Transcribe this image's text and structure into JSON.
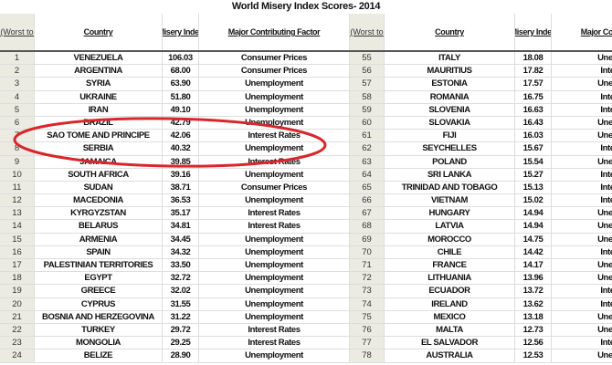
{
  "title": "World Misery Index Scores- 2014",
  "headers": {
    "rank": "Rank (Worst to Best)",
    "country": "Country",
    "index": "Misery Index",
    "factor": "Major Contributing Factor"
  },
  "highlight_color": "#d8262b",
  "left_rows": [
    [
      "1",
      "VENEZUELA",
      "106.03",
      "Consumer Prices"
    ],
    [
      "2",
      "ARGENTINA",
      "68.00",
      "Consumer Prices"
    ],
    [
      "3",
      "SYRIA",
      "63.90",
      "Unemployment"
    ],
    [
      "4",
      "UKRAINE",
      "51.80",
      "Unemployment"
    ],
    [
      "5",
      "IRAN",
      "49.10",
      "Unemployment"
    ],
    [
      "6",
      "BRAZIL",
      "42.79",
      "Unemployment"
    ],
    [
      "7",
      "SAO TOME AND PRINCIPE",
      "42.06",
      "Interest Rates"
    ],
    [
      "8",
      "SERBIA",
      "40.32",
      "Unemployment"
    ],
    [
      "9",
      "JAMAICA",
      "39.85",
      "Interest Rates"
    ],
    [
      "10",
      "SOUTH AFRICA",
      "39.16",
      "Unemployment"
    ],
    [
      "11",
      "SUDAN",
      "38.71",
      "Consumer Prices"
    ],
    [
      "12",
      "MACEDONIA",
      "36.53",
      "Unemployment"
    ],
    [
      "13",
      "KYRGYZSTAN",
      "35.17",
      "Interest Rates"
    ],
    [
      "14",
      "BELARUS",
      "34.81",
      "Interest Rates"
    ],
    [
      "15",
      "ARMENIA",
      "34.45",
      "Unemployment"
    ],
    [
      "16",
      "SPAIN",
      "34.32",
      "Unemployment"
    ],
    [
      "17",
      "PALESTINIAN TERRITORIES",
      "33.50",
      "Unemployment"
    ],
    [
      "18",
      "EGYPT",
      "32.72",
      "Unemployment"
    ],
    [
      "19",
      "GREECE",
      "32.02",
      "Unemployment"
    ],
    [
      "20",
      "CYPRUS",
      "31.55",
      "Unemployment"
    ],
    [
      "21",
      "BOSNIA AND HERZEGOVINA",
      "31.22",
      "Unemployment"
    ],
    [
      "22",
      "TURKEY",
      "29.72",
      "Interest Rates"
    ],
    [
      "23",
      "MONGOLIA",
      "29.25",
      "Interest Rates"
    ],
    [
      "24",
      "BELIZE",
      "28.90",
      "Unemployment"
    ]
  ],
  "right_rows": [
    [
      "55",
      "ITALY",
      "18.08",
      "Unemployment"
    ],
    [
      "56",
      "MAURITIUS",
      "17.82",
      "Interest Rates"
    ],
    [
      "57",
      "ESTONIA",
      "17.57",
      "Unemployment"
    ],
    [
      "58",
      "ROMANIA",
      "16.75",
      "Interest Rates"
    ],
    [
      "59",
      "SLOVENIA",
      "16.63",
      "Interest Rates"
    ],
    [
      "60",
      "SLOVAKIA",
      "16.43",
      "Unemployment"
    ],
    [
      "61",
      "FIJI",
      "16.03",
      "Unemployment"
    ],
    [
      "62",
      "SEYCHELLES",
      "15.67",
      "Interest Rates"
    ],
    [
      "63",
      "POLAND",
      "15.54",
      "Unemployment"
    ],
    [
      "64",
      "SRI LANKA",
      "15.27",
      "Interest Rates"
    ],
    [
      "65",
      "TRINIDAD AND TOBAGO",
      "15.13",
      "Interest Rates"
    ],
    [
      "66",
      "VIETNAM",
      "15.02",
      "Interest Rates"
    ],
    [
      "67",
      "HUNGARY",
      "14.94",
      "Unemployment"
    ],
    [
      "68",
      "LATVIA",
      "14.94",
      "Unemployment"
    ],
    [
      "69",
      "MOROCCO",
      "14.75",
      "Unemployment"
    ],
    [
      "70",
      "CHILE",
      "14.42",
      "Interest Rates"
    ],
    [
      "71",
      "FRANCE",
      "14.17",
      "Unemployment"
    ],
    [
      "72",
      "LITHUANIA",
      "13.96",
      "Unemployment"
    ],
    [
      "73",
      "ECUADOR",
      "13.72",
      "Interest Rates"
    ],
    [
      "74",
      "IRELAND",
      "13.62",
      "Interest Rates"
    ],
    [
      "75",
      "MEXICO",
      "13.18",
      "Unemployment"
    ],
    [
      "76",
      "MALTA",
      "12.73",
      "Unemployment"
    ],
    [
      "77",
      "EL SALVADOR",
      "12.56",
      "Interest Rates"
    ],
    [
      "78",
      "AUSTRALIA",
      "12.53",
      "Unemployment"
    ]
  ]
}
